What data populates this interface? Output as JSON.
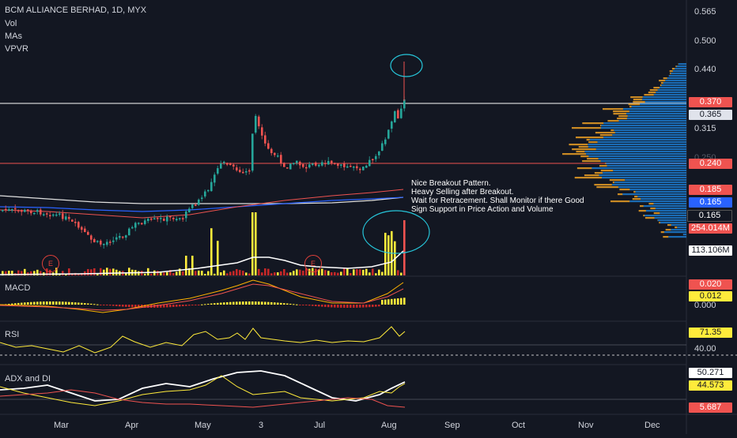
{
  "header": {
    "title": "BCM ALLIANCE BERHAD, 1D, MYX"
  },
  "legend": [
    {
      "label": "Vol"
    },
    {
      "label": "MAs"
    },
    {
      "label": "VPVR"
    }
  ],
  "price_axis": {
    "ticks": [
      "0.565",
      "0.500",
      "0.440",
      "0.365",
      "0.315",
      "0.250",
      "0.165"
    ],
    "badges": [
      {
        "label": "0.370",
        "bg": "#ef5350",
        "fg": "#ffffff"
      },
      {
        "label": "0.365",
        "bg": "#e0e3eb",
        "fg": "#131722"
      },
      {
        "label": "0.240",
        "bg": "#ef5350",
        "fg": "#ffffff"
      },
      {
        "label": "0.185",
        "bg": "#ef5350",
        "fg": "#ffffff"
      },
      {
        "label": "0.165",
        "bg": "#2962ff",
        "fg": "#ffffff"
      },
      {
        "label": "0.165",
        "bg": "#ffffff",
        "fg": "#131722"
      },
      {
        "label": "254.014M",
        "bg": "#ef5350",
        "fg": "#ffffff"
      },
      {
        "label": "113.106M",
        "bg": "#ffffff",
        "fg": "#131722"
      }
    ]
  },
  "annotation": {
    "lines": [
      "Nice Breakout Pattern.",
      "Heavy Selling after Breakout.",
      "Wait for Retracement. Shall Monitor if there Good",
      "Sign Support in Price Action and Volume"
    ]
  },
  "earnings": {
    "label": "E"
  },
  "macd": {
    "label": "MACD",
    "badges": [
      {
        "label": "0.020",
        "bg": "#ef5350",
        "fg": "#ffffff"
      },
      {
        "label": "0.012",
        "bg": "#ffeb3b",
        "fg": "#131722"
      }
    ],
    "tick": "0.000"
  },
  "rsi": {
    "label": "RSI",
    "badges": [
      {
        "label": "71.35",
        "bg": "#ffeb3b",
        "fg": "#131722"
      }
    ],
    "tick": "40.00"
  },
  "adx": {
    "label": "ADX and DI",
    "badges": [
      {
        "label": "50.271",
        "bg": "#ffffff",
        "fg": "#131722"
      },
      {
        "label": "44.573",
        "bg": "#ffeb3b",
        "fg": "#131722"
      },
      {
        "label": "5.687",
        "bg": "#ef5350",
        "fg": "#ffffff"
      }
    ]
  },
  "time_axis": [
    "Mar",
    "Apr",
    "May",
    "3",
    "Jul",
    "Aug",
    "Sep",
    "Oct",
    "Nov",
    "Dec"
  ],
  "colors": {
    "up": "#26a69a",
    "down": "#ef5350",
    "bg": "#131722",
    "hline": "#ffffff",
    "support": "#ef5350"
  }
}
